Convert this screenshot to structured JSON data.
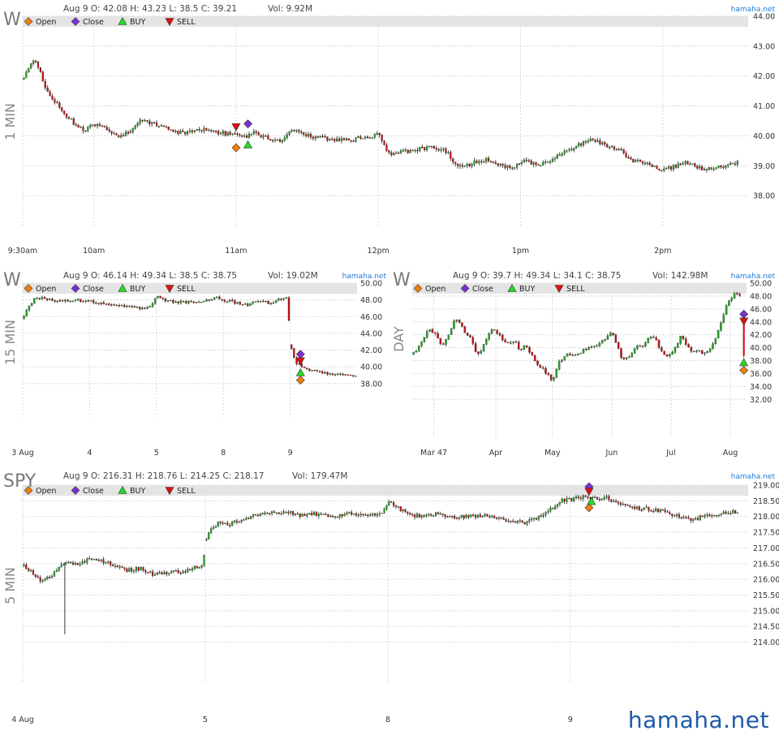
{
  "site_credit": "hamaha.net",
  "watermark": "hamaha.net",
  "colors": {
    "up_candle": "#22aa22",
    "down_candle": "#cc1111",
    "wick": "#222222",
    "grid": "#d8d8d8",
    "legend_bar": "#e4e4e4",
    "open_marker": "#f07f0e",
    "close_marker": "#7a2fd0",
    "buy_marker": "#22dd22",
    "sell_marker": "#dd1111",
    "credit": "#1e7bd6"
  },
  "legend": [
    {
      "label": "Open",
      "icon": "diamond-icon",
      "color": "#f07f0e"
    },
    {
      "label": "Close",
      "icon": "diamond-icon",
      "color": "#7a2fd0"
    },
    {
      "label": "BUY",
      "icon": "triangle-up-icon",
      "color": "#22dd22"
    },
    {
      "label": "SELL",
      "icon": "triangle-down-icon",
      "color": "#dd1111"
    }
  ],
  "chart_data": [
    {
      "type": "candlestick",
      "symbol": "W",
      "timeframe": "1 MIN",
      "header": {
        "date": "Aug 9",
        "open": "O: 42.08",
        "high": "H: 43.23",
        "low": "L: 38.5",
        "close": "C: 39.21",
        "volume": "Vol: 9.92M"
      },
      "x_ticks": [
        {
          "x": 0,
          "label": "9:30am"
        },
        {
          "x": 30,
          "label": "10am"
        },
        {
          "x": 90,
          "label": "11am"
        },
        {
          "x": 150,
          "label": "12pm"
        },
        {
          "x": 210,
          "label": "1pm"
        },
        {
          "x": 270,
          "label": "2pm"
        }
      ],
      "xlim": [
        0,
        306
      ],
      "y_ticks": [
        "38.00",
        "39.00",
        "40.00",
        "41.00",
        "42.00",
        "43.00",
        "44.00"
      ],
      "ylim": [
        37.0,
        44.0
      ],
      "grid": true,
      "price_path": [
        [
          0,
          41.9
        ],
        [
          3,
          42.3
        ],
        [
          5,
          42.6
        ],
        [
          8,
          42.0
        ],
        [
          10,
          41.5
        ],
        [
          14,
          41.1
        ],
        [
          18,
          40.7
        ],
        [
          22,
          40.4
        ],
        [
          26,
          40.2
        ],
        [
          30,
          40.35
        ],
        [
          34,
          40.3
        ],
        [
          38,
          40.05
        ],
        [
          42,
          40.0
        ],
        [
          46,
          40.2
        ],
        [
          50,
          40.55
        ],
        [
          55,
          40.4
        ],
        [
          60,
          40.25
        ],
        [
          66,
          40.1
        ],
        [
          72,
          40.15
        ],
        [
          78,
          40.2
        ],
        [
          84,
          40.1
        ],
        [
          90,
          40.0
        ],
        [
          94,
          39.95
        ],
        [
          98,
          40.1
        ],
        [
          104,
          39.9
        ],
        [
          108,
          39.8
        ],
        [
          112,
          40.1
        ],
        [
          116,
          40.2
        ],
        [
          120,
          40.0
        ],
        [
          126,
          39.95
        ],
        [
          132,
          39.85
        ],
        [
          138,
          39.85
        ],
        [
          144,
          39.95
        ],
        [
          150,
          40.05
        ],
        [
          154,
          39.4
        ],
        [
          160,
          39.45
        ],
        [
          166,
          39.55
        ],
        [
          172,
          39.6
        ],
        [
          178,
          39.55
        ],
        [
          182,
          39.1
        ],
        [
          186,
          38.95
        ],
        [
          190,
          39.1
        ],
        [
          196,
          39.2
        ],
        [
          202,
          39.0
        ],
        [
          206,
          38.95
        ],
        [
          212,
          39.15
        ],
        [
          218,
          39.0
        ],
        [
          224,
          39.25
        ],
        [
          230,
          39.5
        ],
        [
          236,
          39.75
        ],
        [
          240,
          39.9
        ],
        [
          244,
          39.75
        ],
        [
          248,
          39.6
        ],
        [
          252,
          39.55
        ],
        [
          256,
          39.2
        ],
        [
          262,
          39.1
        ],
        [
          266,
          38.95
        ],
        [
          270,
          38.85
        ],
        [
          274,
          38.95
        ],
        [
          280,
          39.1
        ],
        [
          284,
          38.95
        ],
        [
          288,
          38.9
        ],
        [
          294,
          38.95
        ],
        [
          300,
          39.1
        ],
        [
          302,
          39.1
        ]
      ],
      "jumps": [
        [
          45,
          0.6
        ]
      ],
      "markers": [
        {
          "type": "open",
          "x": 90,
          "y": 39.6
        },
        {
          "type": "sell",
          "x": 90,
          "y": 40.3
        },
        {
          "type": "close",
          "x": 95,
          "y": 40.4
        },
        {
          "type": "buy",
          "x": 95,
          "y": 39.7
        }
      ],
      "bar_count": 302,
      "seed": 11
    },
    {
      "type": "candlestick",
      "symbol": "W",
      "timeframe": "15 MIN",
      "header": {
        "date": "Aug 9",
        "open": "O: 46.14",
        "high": "H: 49.34",
        "low": "L: 38.5",
        "close": "C: 38.75",
        "volume": "Vol: 19.02M"
      },
      "x_ticks": [
        {
          "x": 0,
          "label": "3 Aug"
        },
        {
          "x": 26,
          "label": "4"
        },
        {
          "x": 52,
          "label": "5"
        },
        {
          "x": 78,
          "label": "8"
        },
        {
          "x": 104,
          "label": "9"
        }
      ],
      "xlim": [
        0,
        130
      ],
      "y_ticks": [
        "38.00",
        "40.00",
        "42.00",
        "44.00",
        "46.00",
        "48.00",
        "50.00"
      ],
      "ylim": [
        34.0,
        50.0
      ],
      "grid": true,
      "price_path": [
        [
          0,
          45.8
        ],
        [
          2,
          47.0
        ],
        [
          5,
          48.3
        ],
        [
          8,
          48.2
        ],
        [
          14,
          47.9
        ],
        [
          20,
          48.0
        ],
        [
          26,
          47.8
        ],
        [
          32,
          47.5
        ],
        [
          40,
          47.3
        ],
        [
          46,
          46.9
        ],
        [
          50,
          47.4
        ],
        [
          52,
          48.4
        ],
        [
          56,
          47.9
        ],
        [
          62,
          47.7
        ],
        [
          70,
          47.9
        ],
        [
          76,
          48.3
        ],
        [
          78,
          48.0
        ],
        [
          84,
          47.6
        ],
        [
          88,
          47.4
        ],
        [
          92,
          48.0
        ],
        [
          96,
          47.6
        ],
        [
          100,
          48.1
        ],
        [
          103,
          48.2
        ],
        [
          104,
          42.6
        ],
        [
          106,
          40.5
        ],
        [
          108,
          40.2
        ],
        [
          112,
          39.6
        ],
        [
          116,
          39.4
        ],
        [
          120,
          39.0
        ],
        [
          124,
          39.2
        ],
        [
          128,
          38.9
        ],
        [
          129,
          38.8
        ]
      ],
      "jumps": [
        [
          104,
          1.2
        ]
      ],
      "markers": [
        {
          "type": "close",
          "x": 108,
          "y": 41.5
        },
        {
          "type": "sell",
          "x": 108,
          "y": 40.7
        },
        {
          "type": "buy",
          "x": 108,
          "y": 39.3
        },
        {
          "type": "open",
          "x": 108,
          "y": 38.4
        }
      ],
      "bar_count": 130,
      "seed": 23
    },
    {
      "type": "candlestick",
      "symbol": "W",
      "timeframe": "DAY",
      "header": {
        "date": "Aug 9",
        "open": "O: 39.7",
        "high": "H: 49.34",
        "low": "L: 34.1",
        "close": "C: 38.75",
        "volume": "Vol: 142.98M"
      },
      "x_ticks": [
        {
          "x": 8,
          "label": "Mar 47"
        },
        {
          "x": 31,
          "label": "Apr"
        },
        {
          "x": 52,
          "label": "May"
        },
        {
          "x": 74,
          "label": "Jun"
        },
        {
          "x": 96,
          "label": "Jul"
        },
        {
          "x": 118,
          "label": "Aug"
        }
      ],
      "xlim": [
        0,
        124
      ],
      "y_ticks": [
        "32.00",
        "34.00",
        "36.00",
        "38.00",
        "40.00",
        "42.00",
        "44.00",
        "46.00",
        "48.00",
        "50.00"
      ],
      "ylim": [
        26.0,
        50.0
      ],
      "grid": true,
      "price_path": [
        [
          0,
          39.0
        ],
        [
          3,
          40.5
        ],
        [
          6,
          43.0
        ],
        [
          9,
          42.0
        ],
        [
          11,
          40.0
        ],
        [
          14,
          42.5
        ],
        [
          16,
          44.5
        ],
        [
          18,
          43.5
        ],
        [
          20,
          42.0
        ],
        [
          22,
          41.5
        ],
        [
          24,
          38.5
        ],
        [
          26,
          40.0
        ],
        [
          28,
          42.0
        ],
        [
          30,
          43.0
        ],
        [
          32,
          42.0
        ],
        [
          35,
          40.5
        ],
        [
          38,
          41.0
        ],
        [
          40,
          39.5
        ],
        [
          42,
          40.5
        ],
        [
          44,
          39.0
        ],
        [
          46,
          37.5
        ],
        [
          48,
          37.0
        ],
        [
          50,
          36.0
        ],
        [
          52,
          35.0
        ],
        [
          54,
          37.5
        ],
        [
          56,
          38.5
        ],
        [
          58,
          39.0
        ],
        [
          60,
          38.5
        ],
        [
          63,
          39.5
        ],
        [
          66,
          40.0
        ],
        [
          69,
          40.5
        ],
        [
          72,
          41.5
        ],
        [
          74,
          42.5
        ],
        [
          76,
          40.5
        ],
        [
          78,
          38.0
        ],
        [
          80,
          38.5
        ],
        [
          83,
          40.0
        ],
        [
          86,
          40.5
        ],
        [
          88,
          42.0
        ],
        [
          90,
          41.5
        ],
        [
          92,
          39.5
        ],
        [
          94,
          38.5
        ],
        [
          96,
          39.0
        ],
        [
          98,
          40.5
        ],
        [
          100,
          42.0
        ],
        [
          102,
          40.0
        ],
        [
          104,
          39.5
        ],
        [
          106,
          39.5
        ],
        [
          108,
          39.0
        ],
        [
          110,
          39.5
        ],
        [
          112,
          41.0
        ],
        [
          114,
          43.0
        ],
        [
          116,
          46.0
        ],
        [
          118,
          47.5
        ],
        [
          120,
          48.5
        ],
        [
          121,
          48.2
        ]
      ],
      "jumps": [],
      "markers": [
        {
          "type": "close",
          "x": 123,
          "y": 45.2
        },
        {
          "type": "sell",
          "x": 123,
          "y": 44.1
        },
        {
          "type": "buy",
          "x": 123,
          "y": 37.7
        },
        {
          "type": "open",
          "x": 123,
          "y": 36.5
        }
      ],
      "extra_bar": {
        "x": 123,
        "open": 44.0,
        "close": 38.75,
        "high": 44.4,
        "low": 38.5
      },
      "bar_count": 122,
      "seed": 37
    },
    {
      "type": "candlestick",
      "symbol": "SPY",
      "timeframe": "5 MIN",
      "header": {
        "date": "Aug 9",
        "open": "O: 216.31",
        "high": "H: 218.76",
        "low": "L: 214.25",
        "close": "C: 218.17",
        "volume": "Vol: 179.47M"
      },
      "x_ticks": [
        {
          "x": 0,
          "label": "4 Aug"
        },
        {
          "x": 78,
          "label": "5"
        },
        {
          "x": 156,
          "label": "8"
        },
        {
          "x": 234,
          "label": "9"
        }
      ],
      "xlim": [
        0,
        310
      ],
      "y_ticks": [
        "214.00",
        "214.50",
        "215.00",
        "215.50",
        "216.00",
        "216.50",
        "217.00",
        "217.50",
        "218.00",
        "218.50",
        "219.00"
      ],
      "ylim": [
        212.75,
        219.0
      ],
      "grid": true,
      "price_path": [
        [
          0,
          216.45
        ],
        [
          4,
          216.2
        ],
        [
          8,
          215.9
        ],
        [
          12,
          216.1
        ],
        [
          16,
          216.45
        ],
        [
          20,
          216.55
        ],
        [
          24,
          216.5
        ],
        [
          30,
          216.7
        ],
        [
          34,
          216.6
        ],
        [
          38,
          216.45
        ],
        [
          44,
          216.3
        ],
        [
          50,
          216.35
        ],
        [
          56,
          216.15
        ],
        [
          62,
          216.2
        ],
        [
          68,
          216.25
        ],
        [
          74,
          216.4
        ],
        [
          77,
          216.4
        ],
        [
          78,
          217.25
        ],
        [
          80,
          217.6
        ],
        [
          84,
          217.8
        ],
        [
          88,
          217.75
        ],
        [
          94,
          217.9
        ],
        [
          100,
          218.05
        ],
        [
          106,
          218.1
        ],
        [
          112,
          218.15
        ],
        [
          118,
          218.05
        ],
        [
          124,
          218.1
        ],
        [
          130,
          218.0
        ],
        [
          136,
          218.05
        ],
        [
          142,
          218.1
        ],
        [
          148,
          218.05
        ],
        [
          154,
          218.15
        ],
        [
          156,
          218.45
        ],
        [
          160,
          218.3
        ],
        [
          166,
          218.0
        ],
        [
          172,
          218.05
        ],
        [
          178,
          218.1
        ],
        [
          184,
          217.95
        ],
        [
          190,
          218.0
        ],
        [
          196,
          218.05
        ],
        [
          202,
          217.95
        ],
        [
          208,
          217.85
        ],
        [
          214,
          217.8
        ],
        [
          220,
          217.95
        ],
        [
          226,
          218.25
        ],
        [
          230,
          218.5
        ],
        [
          234,
          218.55
        ],
        [
          238,
          218.6
        ],
        [
          242,
          218.65
        ],
        [
          246,
          218.55
        ],
        [
          250,
          218.6
        ],
        [
          254,
          218.4
        ],
        [
          260,
          218.3
        ],
        [
          266,
          218.25
        ],
        [
          272,
          218.2
        ],
        [
          278,
          218.05
        ],
        [
          282,
          217.95
        ],
        [
          286,
          217.85
        ],
        [
          290,
          218.0
        ],
        [
          296,
          218.05
        ],
        [
          300,
          218.1
        ],
        [
          304,
          218.15
        ],
        [
          306,
          218.15
        ]
      ],
      "jumps": [
        [
          78,
          0.8
        ]
      ],
      "spike": {
        "x": 18,
        "low": 214.25,
        "high": 216.55
      },
      "markers": [
        {
          "type": "close",
          "x": 242,
          "y": 218.95
        },
        {
          "type": "sell",
          "x": 242,
          "y": 218.8
        },
        {
          "type": "buy",
          "x": 243,
          "y": 218.48
        },
        {
          "type": "open",
          "x": 242,
          "y": 218.28
        }
      ],
      "bar_count": 306,
      "seed": 51
    }
  ]
}
